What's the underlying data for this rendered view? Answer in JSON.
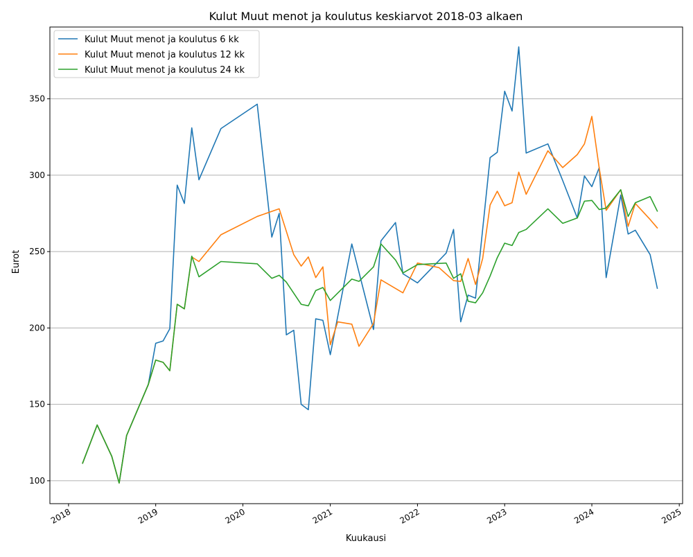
{
  "chart_data": {
    "type": "line",
    "title": "Kulut Muut menot ja koulutus keskiarvot 2018-03 alkaen",
    "xlabel": "Kuukausi",
    "ylabel": "Eurot",
    "xlim": [
      "2017-10-15",
      "2025-01-15"
    ],
    "ylim": [
      85,
      397
    ],
    "grid": "y",
    "legend": "top-left",
    "x_ticks": [
      "2018",
      "2019",
      "2020",
      "2021",
      "2022",
      "2023",
      "2024",
      "2025"
    ],
    "y_ticks": [
      100,
      150,
      200,
      250,
      300,
      350
    ],
    "series": [
      {
        "name": "Kulut Muut menot ja koulutus 6 kk",
        "color": "#1f77b4",
        "points": [
          [
            "2018-03-01",
            111.5
          ],
          [
            "2018-05-01",
            136.5
          ],
          [
            "2018-07-01",
            116
          ],
          [
            "2018-08-01",
            98.5
          ],
          [
            "2018-09-01",
            129.5
          ],
          [
            "2018-12-01",
            163
          ],
          [
            "2019-01-01",
            190
          ],
          [
            "2019-02-01",
            191.5
          ],
          [
            "2019-03-01",
            199.5
          ],
          [
            "2019-04-01",
            293.5
          ],
          [
            "2019-05-01",
            281.5
          ],
          [
            "2019-06-01",
            331
          ],
          [
            "2019-07-01",
            297
          ],
          [
            "2019-10-01",
            330.5
          ],
          [
            "2020-03-01",
            346.5
          ],
          [
            "2020-05-01",
            259.5
          ],
          [
            "2020-06-01",
            275
          ],
          [
            "2020-07-01",
            195.5
          ],
          [
            "2020-08-01",
            198.5
          ],
          [
            "2020-09-01",
            150
          ],
          [
            "2020-10-01",
            146.5
          ],
          [
            "2020-11-01",
            206
          ],
          [
            "2020-12-01",
            205
          ],
          [
            "2021-01-01",
            182.5
          ],
          [
            "2021-04-01",
            255
          ],
          [
            "2021-07-01",
            199
          ],
          [
            "2021-08-01",
            257
          ],
          [
            "2021-10-01",
            269
          ],
          [
            "2021-11-01",
            235.5
          ],
          [
            "2022-01-01",
            229.5
          ],
          [
            "2022-05-01",
            249
          ],
          [
            "2022-06-01",
            264.5
          ],
          [
            "2022-07-01",
            204
          ],
          [
            "2022-08-01",
            221.5
          ],
          [
            "2022-09-01",
            219.5
          ],
          [
            "2022-11-01",
            311.5
          ],
          [
            "2022-12-01",
            315
          ],
          [
            "2023-01-01",
            355
          ],
          [
            "2023-02-01",
            342
          ],
          [
            "2023-03-01",
            384
          ],
          [
            "2023-04-01",
            314.5
          ],
          [
            "2023-07-01",
            320.5
          ],
          [
            "2023-09-01",
            296.5
          ],
          [
            "2023-11-01",
            272
          ],
          [
            "2023-12-01",
            299.5
          ],
          [
            "2024-01-01",
            292.5
          ],
          [
            "2024-02-01",
            305
          ],
          [
            "2024-03-01",
            233
          ],
          [
            "2024-05-01",
            287
          ],
          [
            "2024-06-01",
            261.5
          ],
          [
            "2024-07-01",
            264
          ],
          [
            "2024-09-01",
            248
          ],
          [
            "2024-10-01",
            226
          ]
        ]
      },
      {
        "name": "Kulut Muut menot ja koulutus 12 kk",
        "color": "#ff7f0e",
        "points": [
          [
            "2018-03-01",
            111.5
          ],
          [
            "2018-05-01",
            136.5
          ],
          [
            "2018-07-01",
            116
          ],
          [
            "2018-08-01",
            98.5
          ],
          [
            "2018-09-01",
            129.5
          ],
          [
            "2018-12-01",
            163
          ],
          [
            "2019-01-01",
            179
          ],
          [
            "2019-02-01",
            177.5
          ],
          [
            "2019-03-01",
            172
          ],
          [
            "2019-04-01",
            215.5
          ],
          [
            "2019-05-01",
            212.5
          ],
          [
            "2019-06-01",
            246.5
          ],
          [
            "2019-07-01",
            243.5
          ],
          [
            "2019-10-01",
            261
          ],
          [
            "2020-03-01",
            273
          ],
          [
            "2020-06-01",
            278
          ],
          [
            "2020-08-01",
            248
          ],
          [
            "2020-09-01",
            240.5
          ],
          [
            "2020-10-01",
            246.5
          ],
          [
            "2020-11-01",
            233
          ],
          [
            "2020-12-01",
            240
          ],
          [
            "2021-01-01",
            189
          ],
          [
            "2021-02-01",
            204
          ],
          [
            "2021-04-01",
            202.5
          ],
          [
            "2021-05-01",
            188
          ],
          [
            "2021-07-01",
            203
          ],
          [
            "2021-08-01",
            231.5
          ],
          [
            "2021-11-01",
            223
          ],
          [
            "2022-01-01",
            242.5
          ],
          [
            "2022-02-01",
            241.5
          ],
          [
            "2022-04-01",
            239.5
          ],
          [
            "2022-06-01",
            231
          ],
          [
            "2022-07-01",
            230.5
          ],
          [
            "2022-08-01",
            245.5
          ],
          [
            "2022-09-01",
            228.5
          ],
          [
            "2022-10-01",
            245.5
          ],
          [
            "2022-11-01",
            280.5
          ],
          [
            "2022-12-01",
            289.5
          ],
          [
            "2023-01-01",
            280
          ],
          [
            "2023-02-01",
            282
          ],
          [
            "2023-03-01",
            302
          ],
          [
            "2023-04-01",
            287.5
          ],
          [
            "2023-07-01",
            316
          ],
          [
            "2023-09-01",
            305
          ],
          [
            "2023-11-01",
            313.5
          ],
          [
            "2023-12-01",
            320.5
          ],
          [
            "2024-01-01",
            338.5
          ],
          [
            "2024-02-01",
            304.5
          ],
          [
            "2024-03-01",
            277
          ],
          [
            "2024-05-01",
            290.5
          ],
          [
            "2024-06-01",
            266.5
          ],
          [
            "2024-07-01",
            281.5
          ],
          [
            "2024-09-01",
            271
          ],
          [
            "2024-10-01",
            265.5
          ]
        ]
      },
      {
        "name": "Kulut Muut menot ja koulutus 24 kk",
        "color": "#2ca02c",
        "points": [
          [
            "2018-03-01",
            111.5
          ],
          [
            "2018-05-01",
            136.5
          ],
          [
            "2018-07-01",
            116
          ],
          [
            "2018-08-01",
            98.5
          ],
          [
            "2018-09-01",
            129.5
          ],
          [
            "2018-12-01",
            163
          ],
          [
            "2019-01-01",
            179
          ],
          [
            "2019-02-01",
            177.5
          ],
          [
            "2019-03-01",
            172
          ],
          [
            "2019-04-01",
            215.5
          ],
          [
            "2019-05-01",
            212.5
          ],
          [
            "2019-06-01",
            247
          ],
          [
            "2019-07-01",
            233.5
          ],
          [
            "2019-10-01",
            243.5
          ],
          [
            "2020-03-01",
            242
          ],
          [
            "2020-05-01",
            232.5
          ],
          [
            "2020-06-01",
            234.5
          ],
          [
            "2020-07-01",
            230
          ],
          [
            "2020-09-01",
            215.5
          ],
          [
            "2020-10-01",
            214.5
          ],
          [
            "2020-11-01",
            224.5
          ],
          [
            "2020-12-01",
            226.5
          ],
          [
            "2021-01-01",
            218
          ],
          [
            "2021-04-01",
            232
          ],
          [
            "2021-05-01",
            230.5
          ],
          [
            "2021-07-01",
            240
          ],
          [
            "2021-08-01",
            255
          ],
          [
            "2021-10-01",
            244.5
          ],
          [
            "2021-11-01",
            236
          ],
          [
            "2022-01-01",
            241.5
          ],
          [
            "2022-05-01",
            242.5
          ],
          [
            "2022-06-01",
            232.5
          ],
          [
            "2022-07-01",
            235.5
          ],
          [
            "2022-08-01",
            217.5
          ],
          [
            "2022-09-01",
            216.5
          ],
          [
            "2022-10-01",
            223
          ],
          [
            "2022-11-01",
            234
          ],
          [
            "2022-12-01",
            246
          ],
          [
            "2023-01-01",
            255.5
          ],
          [
            "2023-02-01",
            254
          ],
          [
            "2023-03-01",
            262.5
          ],
          [
            "2023-04-01",
            264.5
          ],
          [
            "2023-07-01",
            278
          ],
          [
            "2023-09-01",
            268.5
          ],
          [
            "2023-11-01",
            272
          ],
          [
            "2023-12-01",
            283
          ],
          [
            "2024-01-01",
            283.5
          ],
          [
            "2024-02-01",
            277.5
          ],
          [
            "2024-03-01",
            278.5
          ],
          [
            "2024-05-01",
            290.5
          ],
          [
            "2024-06-01",
            273
          ],
          [
            "2024-07-01",
            282
          ],
          [
            "2024-09-01",
            286
          ],
          [
            "2024-10-01",
            276.5
          ]
        ]
      }
    ]
  }
}
